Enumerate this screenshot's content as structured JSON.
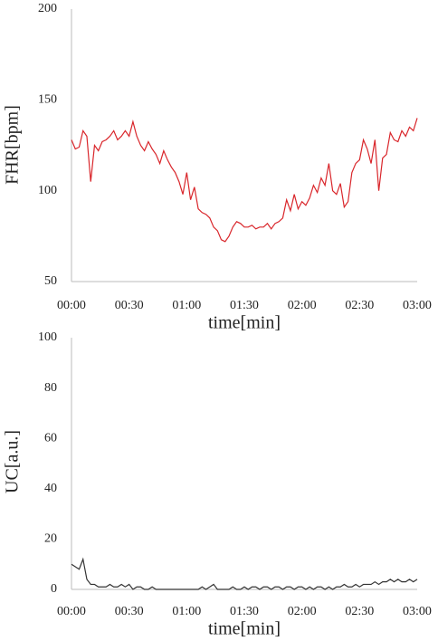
{
  "chart_data": [
    {
      "type": "line",
      "x_label": "time[min]",
      "y_label": "FHR[bpm]",
      "x": [
        0,
        2,
        4,
        6,
        8,
        10,
        12,
        14,
        16,
        18,
        20,
        22,
        24,
        26,
        28,
        30,
        32,
        34,
        36,
        38,
        40,
        42,
        44,
        46,
        48,
        50,
        52,
        54,
        56,
        58,
        60,
        62,
        64,
        66,
        68,
        70,
        72,
        74,
        76,
        78,
        80,
        82,
        84,
        86,
        88,
        90,
        92,
        94,
        96,
        98,
        100,
        102,
        104,
        106,
        108,
        110,
        112,
        114,
        116,
        118,
        120,
        122,
        124,
        126,
        128,
        130,
        132,
        134,
        136,
        138,
        140,
        142,
        144,
        146,
        148,
        150,
        152,
        154,
        156,
        158,
        160,
        162,
        164,
        166,
        168,
        170,
        172,
        174,
        176,
        178,
        180
      ],
      "series": [
        {
          "color": "#d9262b",
          "values": [
            128,
            123,
            124,
            133,
            130,
            105,
            125,
            122,
            127,
            128,
            130,
            133,
            128,
            130,
            133,
            130,
            138,
            130,
            125,
            122,
            127,
            123,
            120,
            115,
            122,
            117,
            113,
            110,
            105,
            98,
            110,
            95,
            102,
            90,
            88,
            87,
            85,
            80,
            78,
            73,
            72,
            75,
            80,
            83,
            82,
            80,
            80,
            81,
            79,
            80,
            80,
            82,
            79,
            82,
            83,
            85,
            95,
            89,
            98,
            90,
            94,
            92,
            96,
            103,
            99,
            107,
            103,
            115,
            100,
            98,
            104,
            91,
            94,
            110,
            115,
            117,
            128,
            123,
            115,
            128,
            100,
            118,
            120,
            132,
            128,
            127,
            133,
            130,
            135,
            133,
            140
          ]
        }
      ],
      "xlim": [
        0,
        180
      ],
      "xticks": [
        {
          "value": 0,
          "label": "00:00"
        },
        {
          "value": 30,
          "label": "00:30"
        },
        {
          "value": 60,
          "label": "01:00"
        },
        {
          "value": 90,
          "label": "01:30"
        },
        {
          "value": 120,
          "label": "02:00"
        },
        {
          "value": 150,
          "label": "02:30"
        },
        {
          "value": 180,
          "label": "03:00"
        }
      ],
      "ylim": [
        50,
        200
      ],
      "yticks": [
        50,
        100,
        150,
        200
      ]
    },
    {
      "type": "line",
      "x_label": "time[min]",
      "y_label": "UC[a.u.]",
      "x": [
        0,
        2,
        4,
        6,
        8,
        10,
        12,
        14,
        16,
        18,
        20,
        22,
        24,
        26,
        28,
        30,
        32,
        34,
        36,
        38,
        40,
        42,
        44,
        46,
        48,
        50,
        52,
        54,
        56,
        58,
        60,
        62,
        64,
        66,
        68,
        70,
        72,
        74,
        76,
        78,
        80,
        82,
        84,
        86,
        88,
        90,
        92,
        94,
        96,
        98,
        100,
        102,
        104,
        106,
        108,
        110,
        112,
        114,
        116,
        118,
        120,
        122,
        124,
        126,
        128,
        130,
        132,
        134,
        136,
        138,
        140,
        142,
        144,
        146,
        148,
        150,
        152,
        154,
        156,
        158,
        160,
        162,
        164,
        166,
        168,
        170,
        172,
        174,
        176,
        178,
        180
      ],
      "series": [
        {
          "color": "#333333",
          "values": [
            10,
            9,
            8,
            12,
            4,
            2,
            2,
            1,
            1,
            1,
            2,
            1,
            1,
            2,
            1,
            2,
            0,
            1,
            1,
            0,
            0,
            1,
            0,
            0,
            0,
            0,
            0,
            0,
            0,
            0,
            0,
            0,
            0,
            0,
            1,
            0,
            1,
            2,
            0,
            0,
            0,
            0,
            1,
            0,
            0,
            1,
            0,
            1,
            1,
            0,
            1,
            1,
            0,
            1,
            1,
            0,
            1,
            1,
            0,
            1,
            1,
            0,
            1,
            0,
            1,
            1,
            0,
            1,
            0,
            1,
            1,
            2,
            1,
            1,
            2,
            1,
            2,
            2,
            2,
            3,
            2,
            3,
            3,
            4,
            3,
            4,
            3,
            3,
            4,
            3,
            4
          ]
        }
      ],
      "xlim": [
        0,
        180
      ],
      "xticks": [
        {
          "value": 0,
          "label": "00:00"
        },
        {
          "value": 30,
          "label": "00:30"
        },
        {
          "value": 60,
          "label": "01:00"
        },
        {
          "value": 90,
          "label": "01:30"
        },
        {
          "value": 120,
          "label": "02:00"
        },
        {
          "value": 150,
          "label": "02:30"
        },
        {
          "value": 180,
          "label": "03:00"
        }
      ],
      "ylim": [
        0,
        100
      ],
      "yticks": [
        0,
        20,
        40,
        60,
        80,
        100
      ]
    }
  ]
}
